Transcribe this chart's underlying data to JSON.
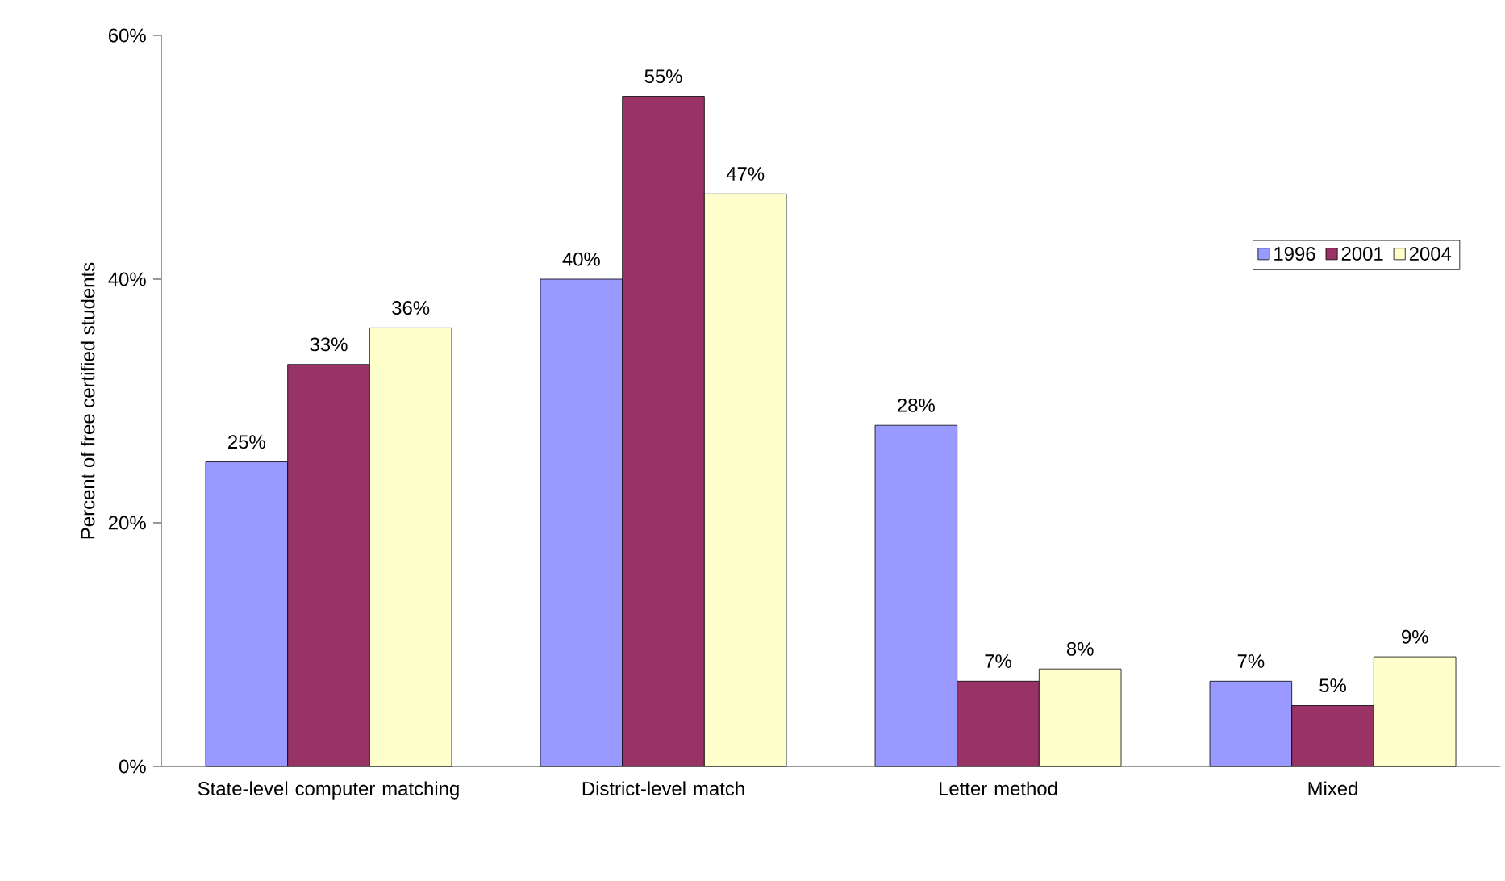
{
  "chart_data": {
    "type": "bar",
    "ylabel": "Percent of free certified students",
    "categories": [
      "State-level computer matching",
      "District-level match",
      "Letter method",
      "Mixed"
    ],
    "series": [
      {
        "name": "1996",
        "color": "#9999ff",
        "values": [
          25,
          40,
          28,
          7
        ],
        "value_labels": [
          "25%",
          "40%",
          "28%",
          "7%"
        ]
      },
      {
        "name": "2001",
        "color": "#993366",
        "values": [
          33,
          55,
          7,
          5
        ],
        "value_labels": [
          "33%",
          "55%",
          "7%",
          "5%"
        ]
      },
      {
        "name": "2004",
        "color": "#ffffcc",
        "values": [
          36,
          47,
          8,
          9
        ],
        "value_labels": [
          "36%",
          "47%",
          "8%",
          "9%"
        ]
      }
    ],
    "ylim": [
      0,
      60
    ],
    "yticks": [
      {
        "value": 0,
        "label": "0%"
      },
      {
        "value": 20,
        "label": "20%"
      },
      {
        "value": 40,
        "label": "40%"
      },
      {
        "value": 60,
        "label": "60%"
      }
    ],
    "grid": false,
    "legend": "right"
  }
}
